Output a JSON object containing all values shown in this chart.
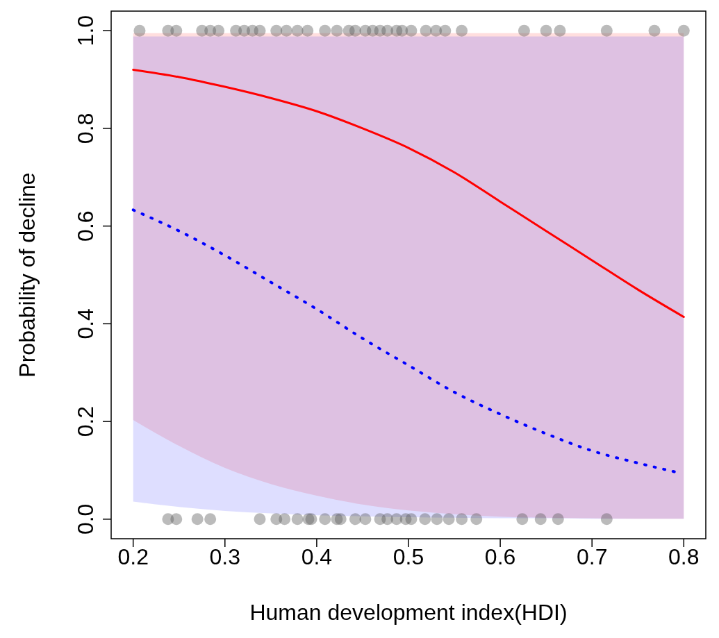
{
  "chart_data": {
    "type": "line",
    "xlabel": "Human development index(HDI)",
    "ylabel": "Probability of decline",
    "xlim": [
      0.176,
      0.824
    ],
    "ylim": [
      -0.04,
      1.04
    ],
    "xticks": [
      0.2,
      0.3,
      0.4,
      0.5,
      0.6,
      0.7,
      0.8
    ],
    "yticks": [
      {
        "value": 0,
        "label": "0.0"
      },
      0.2,
      0.4,
      0.6,
      0.8,
      {
        "value": 1,
        "label": "1.0"
      }
    ],
    "grid": false,
    "legend": false,
    "series": [
      {
        "type": "line",
        "color": "#ff0000",
        "line_style": "solid",
        "marker": "none",
        "x": [
          0.2,
          0.25,
          0.3,
          0.35,
          0.4,
          0.45,
          0.5,
          0.55,
          0.6,
          0.65,
          0.7,
          0.75,
          0.8
        ],
        "values": [
          0.92,
          0.905,
          0.885,
          0.862,
          0.835,
          0.8,
          0.76,
          0.71,
          0.65,
          0.59,
          0.53,
          0.47,
          0.414
        ],
        "lower": [
          0.203,
          0.15,
          0.105,
          0.072,
          0.048,
          0.03,
          0.018,
          0.01,
          0.005,
          0.003,
          0.002,
          0.001,
          0.001
        ],
        "upper": [
          0.995,
          0.995,
          0.995,
          0.995,
          0.995,
          0.995,
          0.995,
          0.995,
          0.995,
          0.995,
          0.995,
          0.995,
          0.995
        ]
      },
      {
        "type": "line",
        "color": "#0000ff",
        "line_style": "dotted",
        "marker": "none",
        "x": [
          0.2,
          0.25,
          0.3,
          0.35,
          0.4,
          0.45,
          0.5,
          0.55,
          0.6,
          0.65,
          0.7,
          0.75,
          0.79,
          0.8
        ],
        "values": [
          0.633,
          0.59,
          0.54,
          0.485,
          0.43,
          0.37,
          0.315,
          0.26,
          0.215,
          0.175,
          0.14,
          0.115,
          0.097,
          null
        ],
        "lower": [
          0.036,
          0.025,
          0.017,
          0.012,
          0.008,
          0.006,
          0.004,
          0.003,
          0.002,
          0.002,
          0.001,
          0.001,
          0.001,
          0.001
        ],
        "upper": [
          0.988,
          0.988,
          0.988,
          0.988,
          0.988,
          0.988,
          0.988,
          0.988,
          0.988,
          0.988,
          0.988,
          0.988,
          0.988,
          0.988
        ]
      },
      {
        "type": "scatter",
        "color": "#555555",
        "marker": "circle",
        "x": [
          0.207,
          0.238,
          0.247,
          0.275,
          0.284,
          0.293,
          0.312,
          0.321,
          0.33,
          0.338,
          0.356,
          0.367,
          0.379,
          0.39,
          0.409,
          0.422,
          0.435,
          0.442,
          0.453,
          0.461,
          0.469,
          0.477,
          0.487,
          0.493,
          0.503,
          0.519,
          0.53,
          0.54,
          0.558,
          0.626,
          0.65,
          0.665,
          0.716,
          0.768,
          0.8,
          0.238,
          0.247,
          0.27,
          0.284,
          0.338,
          0.356,
          0.365,
          0.379,
          0.391,
          0.394,
          0.409,
          0.422,
          0.426,
          0.442,
          0.453,
          0.469,
          0.477,
          0.487,
          0.497,
          0.503,
          0.518,
          0.531,
          0.544,
          0.558,
          0.574,
          0.624,
          0.644,
          0.663,
          0.716
        ],
        "values": [
          1,
          1,
          1,
          1,
          1,
          1,
          1,
          1,
          1,
          1,
          1,
          1,
          1,
          1,
          1,
          1,
          1,
          1,
          1,
          1,
          1,
          1,
          1,
          1,
          1,
          1,
          1,
          1,
          1,
          1,
          1,
          1,
          1,
          1,
          1,
          0,
          0,
          0,
          0,
          0,
          0,
          0,
          0,
          0,
          0,
          0,
          0,
          0,
          0,
          0,
          0,
          0,
          0,
          0,
          0,
          0,
          0,
          0,
          0,
          0,
          0,
          0,
          0,
          0
        ]
      }
    ]
  }
}
